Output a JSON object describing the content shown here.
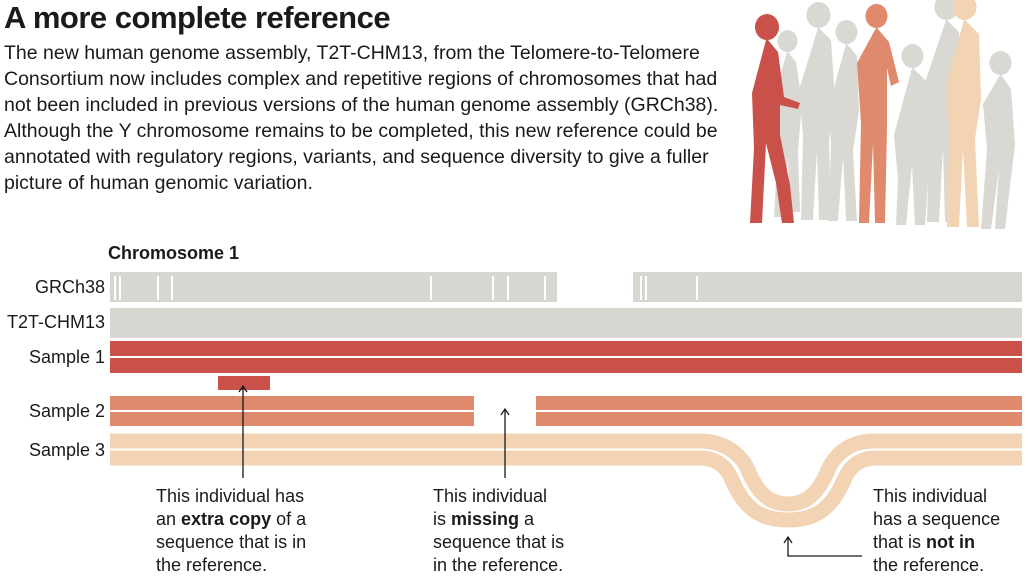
{
  "header": {
    "title": "A more complete reference",
    "intro": "The new human genome assembly, T2T-CHM13, from the Telomere-to-Telomere Consortium now includes complex and repetitive regions of chromosomes that had not been included in previous versions of the human genome assembly (GRCh38). Although the Y chromosome remains to be completed, this new reference could be annotated with regulatory regions, variants, and sequence diversity to give a fuller picture of human genomic variation."
  },
  "diagram": {
    "chromosome_label": "Chromosome 1",
    "rows": [
      {
        "label": "GRCh38"
      },
      {
        "label": "T2T-CHM13"
      },
      {
        "label": "Sample 1"
      },
      {
        "label": "Sample 2"
      },
      {
        "label": "Sample 3"
      }
    ],
    "colors": {
      "reference_gray": "#d8d6d0",
      "sample1": "#c9514a",
      "sample2": "#df8a6c",
      "sample3": "#f2d3b3",
      "people_gray": "#d9d8d3"
    }
  },
  "annotations": {
    "extra": {
      "line1": "This individual has",
      "line2_pre": "an ",
      "line2_bold": "extra copy",
      "line2_post": " of a",
      "line3": "sequence that is in",
      "line4": "the reference."
    },
    "missing": {
      "line1": "This individual",
      "line2_pre": "is ",
      "line2_bold": "missing",
      "line2_post": " a",
      "line3": "sequence that is",
      "line4": "in the reference."
    },
    "notin": {
      "line1": "This individual",
      "line2": "has a sequence",
      "line3_pre": "that is ",
      "line3_bold": "not in",
      "line4": "the reference."
    }
  }
}
